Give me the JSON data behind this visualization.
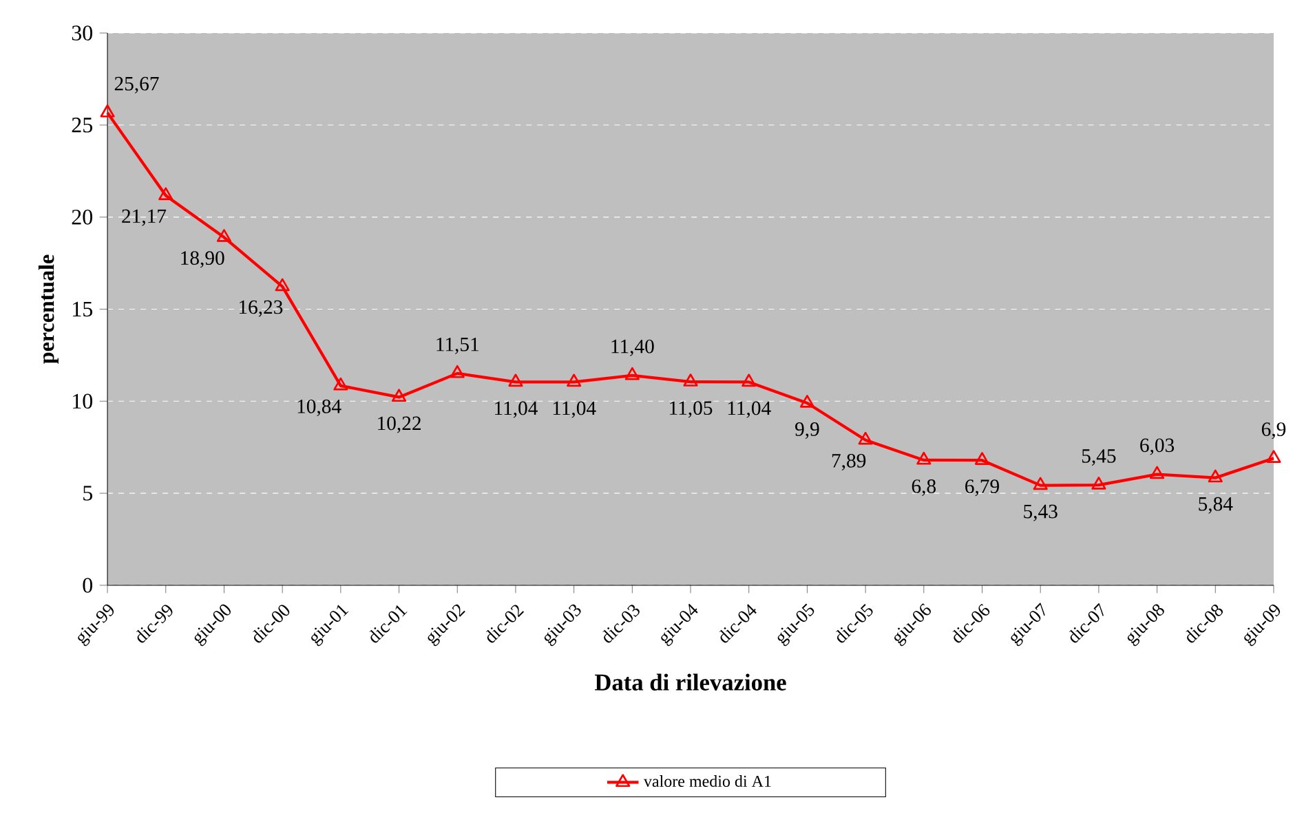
{
  "chart_data": {
    "type": "line",
    "xlabel": "Data di rilevazione",
    "ylabel": "percentuale",
    "categories": [
      "giu-99",
      "dic-99",
      "giu-00",
      "dic-00",
      "giu-01",
      "dic-01",
      "giu-02",
      "dic-02",
      "giu-03",
      "dic-03",
      "giu-04",
      "dic-04",
      "giu-05",
      "dic-05",
      "giu-06",
      "dic-06",
      "giu-07",
      "dic-07",
      "giu-08",
      "dic-08",
      "giu-09"
    ],
    "series": [
      {
        "name": "valore medio di A1",
        "color": "#ff0000",
        "values": [
          25.67,
          21.17,
          18.9,
          16.23,
          10.84,
          10.22,
          11.51,
          11.04,
          11.04,
          11.4,
          11.05,
          11.04,
          9.9,
          7.89,
          6.8,
          6.79,
          5.43,
          5.45,
          6.03,
          5.84,
          6.9
        ],
        "value_labels": [
          "25,67",
          "21,17",
          "18,90",
          "16,23",
          "10,84",
          "10,22",
          "11,51",
          "11,04",
          "11,04",
          "11,40",
          "11,05",
          "11,04",
          "9,9",
          "7,89",
          "6,8",
          "6,79",
          "5,43",
          "5,45",
          "6,03",
          "5,84",
          "6,9"
        ]
      }
    ],
    "ylim": [
      0,
      30
    ],
    "yticks": [
      0,
      5,
      10,
      15,
      20,
      25,
      30
    ],
    "grid": "y",
    "legend": "bottom",
    "marker": "triangle",
    "line_style": "solid"
  }
}
